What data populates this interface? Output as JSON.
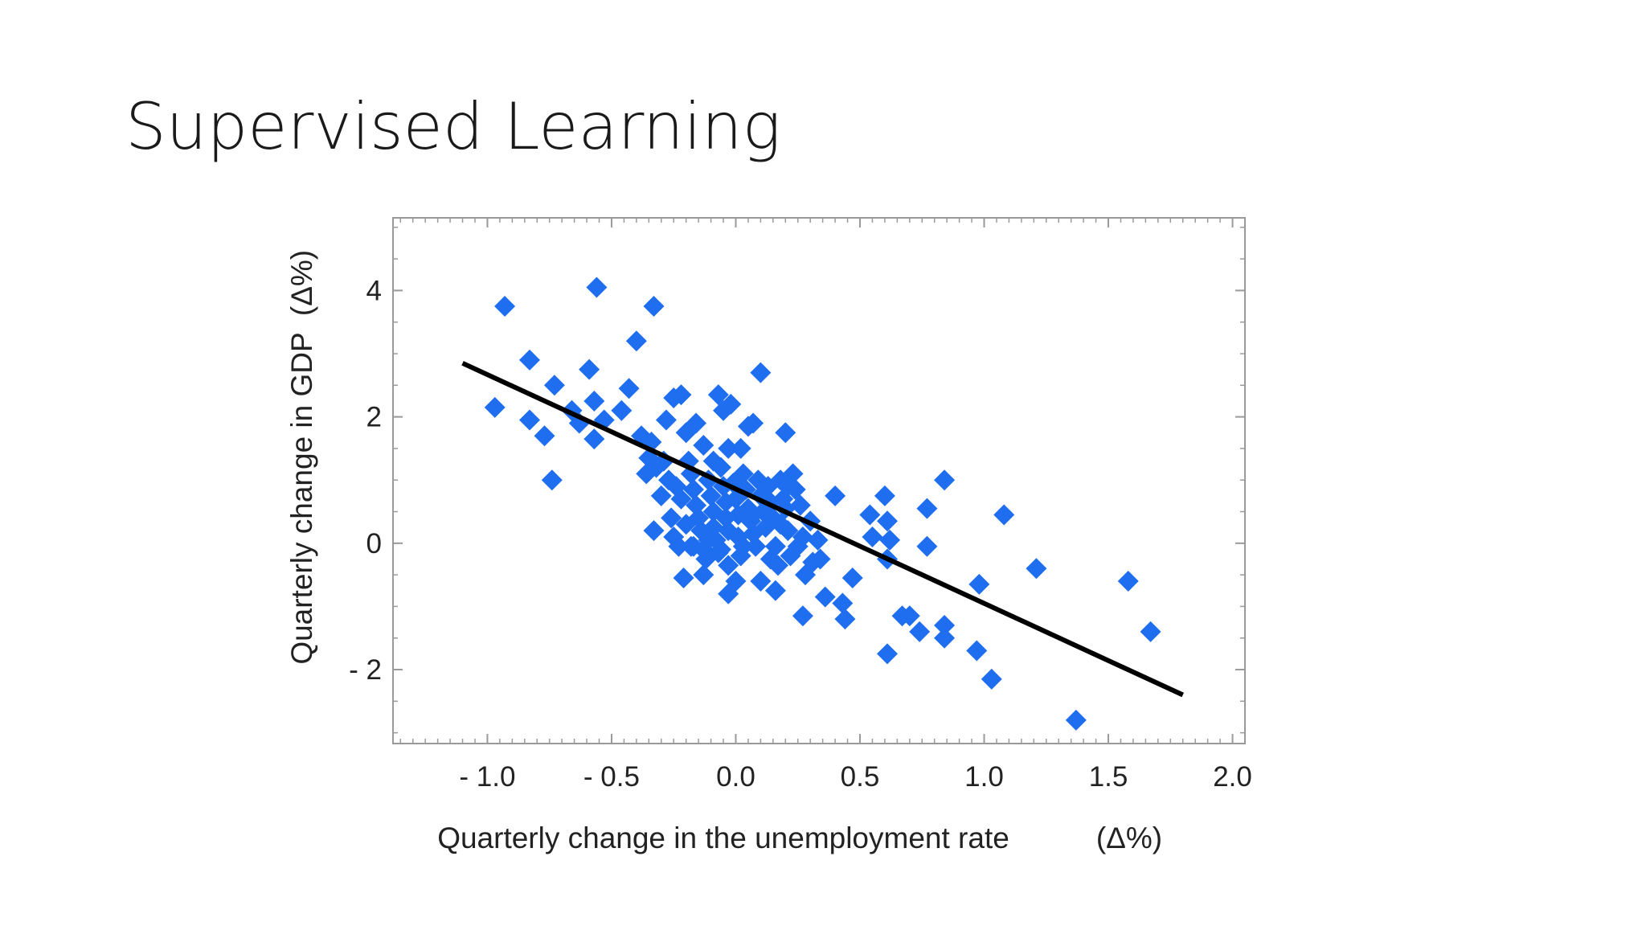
{
  "slide": {
    "title": "Supervised Learning"
  },
  "chart_data": {
    "type": "scatter",
    "title": "",
    "xlabel": "Quarterly change in the unemployment rate",
    "xlabel_unit": "(Δ%)",
    "ylabel": "Quarterly change in GDP",
    "ylabel_unit": "(Δ%)",
    "xlim": [
      -1.38,
      2.05
    ],
    "ylim": [
      -3.17,
      5.15
    ],
    "xticks": [
      -1.0,
      -0.5,
      0.0,
      0.5,
      1.0,
      1.5,
      2.0
    ],
    "xtick_labels": [
      "- 1.0",
      "- 0.5",
      "0.0",
      "0.5",
      "1.0",
      "1.5",
      "2.0"
    ],
    "yticks": [
      -2,
      0,
      2,
      4
    ],
    "ytick_labels": [
      "- 2",
      "0",
      "2",
      "4"
    ],
    "grid": false,
    "legend": "none",
    "marker_color": "#1f6ef0",
    "line_color": "#000000",
    "fit_line": {
      "x": [
        -1.1,
        1.8
      ],
      "y": [
        2.85,
        -2.4
      ]
    },
    "points": [
      [
        -0.93,
        3.75
      ],
      [
        -0.56,
        4.05
      ],
      [
        -0.33,
        3.75
      ],
      [
        -0.4,
        3.2
      ],
      [
        -0.97,
        2.15
      ],
      [
        -0.83,
        2.9
      ],
      [
        -0.83,
        1.95
      ],
      [
        -0.77,
        1.7
      ],
      [
        -0.73,
        2.5
      ],
      [
        -0.74,
        1.0
      ],
      [
        -0.66,
        2.1
      ],
      [
        -0.63,
        1.9
      ],
      [
        -0.59,
        2.75
      ],
      [
        -0.57,
        2.25
      ],
      [
        -0.57,
        1.65
      ],
      [
        -0.53,
        1.95
      ],
      [
        -0.46,
        2.1
      ],
      [
        -0.43,
        2.45
      ],
      [
        -0.38,
        1.7
      ],
      [
        -0.34,
        1.6
      ],
      [
        -0.32,
        1.2
      ],
      [
        -0.35,
        1.35
      ],
      [
        -0.36,
        1.1
      ],
      [
        -0.33,
        0.2
      ],
      [
        -0.28,
        1.95
      ],
      [
        -0.25,
        2.3
      ],
      [
        -0.22,
        2.35
      ],
      [
        -0.2,
        1.75
      ],
      [
        -0.16,
        1.9
      ],
      [
        -0.13,
        1.55
      ],
      [
        -0.09,
        1.3
      ],
      [
        -0.07,
        2.35
      ],
      [
        -0.05,
        2.1
      ],
      [
        -0.02,
        2.2
      ],
      [
        -0.03,
        1.5
      ],
      [
        0.02,
        1.5
      ],
      [
        0.05,
        1.85
      ],
      [
        0.07,
        1.9
      ],
      [
        0.1,
        2.7
      ],
      [
        0.2,
        1.75
      ],
      [
        -0.29,
        1.3
      ],
      [
        -0.27,
        1.0
      ],
      [
        -0.24,
        0.9
      ],
      [
        -0.22,
        0.7
      ],
      [
        -0.26,
        0.4
      ],
      [
        -0.25,
        0.1
      ],
      [
        -0.23,
        -0.05
      ],
      [
        -0.21,
        -0.55
      ],
      [
        -0.19,
        1.3
      ],
      [
        -0.18,
        1.1
      ],
      [
        -0.17,
        0.85
      ],
      [
        -0.16,
        0.6
      ],
      [
        -0.15,
        0.4
      ],
      [
        -0.14,
        0.2
      ],
      [
        -0.13,
        -0.1
      ],
      [
        -0.13,
        -0.5
      ],
      [
        -0.11,
        1.0
      ],
      [
        -0.1,
        0.75
      ],
      [
        -0.09,
        0.5
      ],
      [
        -0.09,
        0.25
      ],
      [
        -0.08,
        0.05
      ],
      [
        -0.07,
        -0.15
      ],
      [
        -0.06,
        1.2
      ],
      [
        -0.05,
        0.9
      ],
      [
        -0.04,
        0.65
      ],
      [
        -0.04,
        0.4
      ],
      [
        -0.03,
        0.2
      ],
      [
        -0.03,
        -0.35
      ],
      [
        -0.03,
        -0.8
      ],
      [
        -0.01,
        0.95
      ],
      [
        0.0,
        0.7
      ],
      [
        0.01,
        0.45
      ],
      [
        0.01,
        0.1
      ],
      [
        0.02,
        -0.2
      ],
      [
        0.0,
        -0.6
      ],
      [
        0.03,
        1.1
      ],
      [
        0.04,
        0.85
      ],
      [
        0.05,
        0.55
      ],
      [
        0.06,
        0.35
      ],
      [
        0.07,
        0.15
      ],
      [
        0.08,
        -0.05
      ],
      [
        0.09,
        1.0
      ],
      [
        0.1,
        0.75
      ],
      [
        0.11,
        0.5
      ],
      [
        0.12,
        0.25
      ],
      [
        0.1,
        -0.6
      ],
      [
        0.13,
        0.9
      ],
      [
        0.14,
        0.65
      ],
      [
        0.15,
        0.4
      ],
      [
        0.16,
        -0.05
      ],
      [
        0.17,
        -0.35
      ],
      [
        0.16,
        -0.75
      ],
      [
        0.18,
        1.0
      ],
      [
        0.2,
        0.55
      ],
      [
        0.21,
        0.2
      ],
      [
        0.23,
        1.1
      ],
      [
        0.24,
        0.85
      ],
      [
        0.22,
        -0.2
      ],
      [
        0.26,
        0.6
      ],
      [
        0.27,
        0.1
      ],
      [
        0.28,
        -0.5
      ],
      [
        0.27,
        -1.15
      ],
      [
        0.3,
        0.35
      ],
      [
        0.31,
        -0.3
      ],
      [
        0.33,
        0.05
      ],
      [
        0.34,
        -0.25
      ],
      [
        0.36,
        -0.85
      ],
      [
        0.4,
        0.75
      ],
      [
        0.43,
        -0.95
      ],
      [
        0.44,
        -1.2
      ],
      [
        0.47,
        -0.55
      ],
      [
        0.54,
        0.45
      ],
      [
        0.55,
        0.1
      ],
      [
        0.6,
        0.75
      ],
      [
        0.61,
        0.35
      ],
      [
        0.62,
        0.05
      ],
      [
        0.61,
        -0.25
      ],
      [
        0.61,
        -1.75
      ],
      [
        0.67,
        -1.15
      ],
      [
        0.7,
        -1.15
      ],
      [
        0.74,
        -1.4
      ],
      [
        0.77,
        0.55
      ],
      [
        0.77,
        -0.05
      ],
      [
        0.84,
        1.0
      ],
      [
        0.84,
        -1.3
      ],
      [
        0.84,
        -1.5
      ],
      [
        0.98,
        -0.65
      ],
      [
        0.97,
        -1.7
      ],
      [
        1.03,
        -2.15
      ],
      [
        1.08,
        0.45
      ],
      [
        1.21,
        -0.4
      ],
      [
        1.37,
        -2.8
      ],
      [
        1.58,
        -0.6
      ],
      [
        1.67,
        -1.4
      ],
      [
        -0.18,
        -0.05
      ],
      [
        -0.2,
        0.3
      ],
      [
        -0.11,
        0.05
      ],
      [
        0.03,
        -0.05
      ],
      [
        0.07,
        0.45
      ],
      [
        0.18,
        0.3
      ],
      [
        0.25,
        -0.05
      ],
      [
        -0.12,
        -0.25
      ],
      [
        -0.06,
        -0.1
      ],
      [
        0.19,
        0.7
      ],
      [
        -0.3,
        0.75
      ],
      [
        -0.17,
        -0.05
      ],
      [
        0.14,
        -0.25
      ],
      [
        0.21,
        0.9
      ]
    ]
  }
}
